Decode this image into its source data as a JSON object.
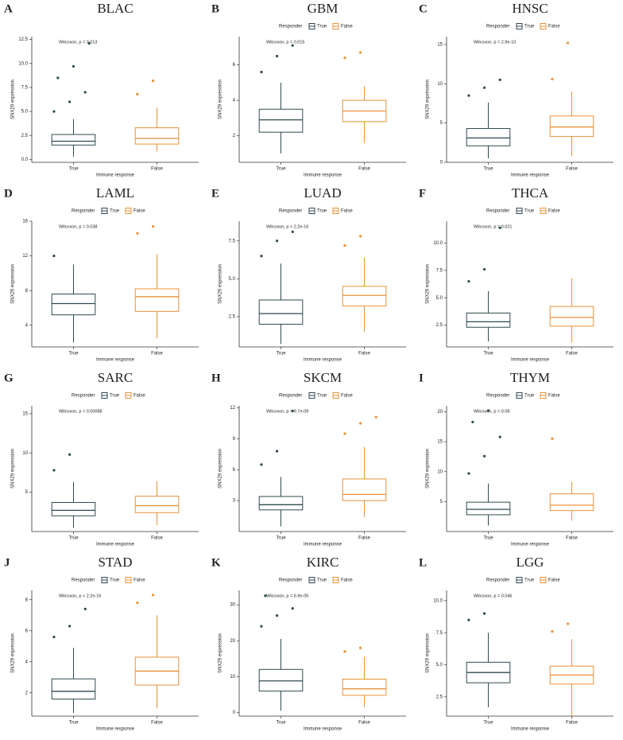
{
  "chart_data": [
    {
      "type": "box",
      "panel_label": "A",
      "title": "BLAC",
      "legend": "none",
      "annotation": "Wilcoxon, p = 0.013",
      "xlabel": "Immune response",
      "ylabel": "SNX29 expression",
      "categories": [
        "True",
        "False"
      ],
      "ylim": [
        -0.3,
        12.8
      ],
      "yticks": [
        {
          "value": 0,
          "label": "0.0"
        },
        2.5,
        {
          "value": 5,
          "label": "5.0"
        },
        7.5,
        {
          "value": 10,
          "label": "10.0"
        },
        12.5
      ],
      "series": [
        {
          "name": "True",
          "color": "#2f4a4f",
          "whislo": 0.3,
          "q1": 1.5,
          "median": 1.9,
          "q3": 2.6,
          "whishi": 4.2,
          "outliers": [
            5,
            6,
            7,
            8.5,
            9.7,
            12.1
          ]
        },
        {
          "name": "False",
          "color": "#e8923a",
          "whislo": 0.8,
          "q1": 1.6,
          "median": 2.2,
          "q3": 3.3,
          "whishi": 5.4,
          "outliers": [
            6.8,
            8.2
          ]
        }
      ]
    },
    {
      "type": "box",
      "panel_label": "B",
      "title": "GBM",
      "legend": "top",
      "legend_title": "Responder",
      "annotation": "Wilcoxon, p = 0.015",
      "xlabel": "Immune response",
      "ylabel": "SNX29 expression",
      "categories": [
        "True",
        "False"
      ],
      "ylim": [
        0.5,
        7.6
      ],
      "yticks": [
        2,
        4,
        6
      ],
      "series": [
        {
          "name": "True",
          "color": "#2f4a4f",
          "whislo": 1.0,
          "q1": 2.2,
          "median": 2.9,
          "q3": 3.5,
          "whishi": 5.0,
          "outliers": [
            5.6,
            6.5,
            7.1
          ]
        },
        {
          "name": "False",
          "color": "#e8923a",
          "whislo": 1.6,
          "q1": 2.8,
          "median": 3.4,
          "q3": 4.0,
          "whishi": 4.8,
          "outliers": [
            6.4,
            6.7
          ]
        }
      ]
    },
    {
      "type": "box",
      "panel_label": "C",
      "title": "HNSC",
      "legend": "top",
      "legend_title": "Responder",
      "annotation": "Wilcoxon, p = 2.9e-10",
      "xlabel": "Immune response",
      "ylabel": "SNX29 expression",
      "categories": [
        "True",
        "False"
      ],
      "ylim": [
        0,
        16
      ],
      "yticks": [
        0,
        5,
        10,
        15
      ],
      "series": [
        {
          "name": "True",
          "color": "#2f4a4f",
          "whislo": 0.5,
          "q1": 2.1,
          "median": 3.1,
          "q3": 4.3,
          "whishi": 7.6,
          "outliers": [
            8.5,
            9.5,
            10.5
          ]
        },
        {
          "name": "False",
          "color": "#e8923a",
          "whislo": 0.8,
          "q1": 3.3,
          "median": 4.5,
          "q3": 5.9,
          "whishi": 9.0,
          "outliers": [
            10.6,
            15.2
          ]
        }
      ]
    },
    {
      "type": "box",
      "panel_label": "D",
      "title": "LAML",
      "legend": "top",
      "legend_title": "Responder",
      "annotation": "Wilcoxon, p = 0.038",
      "xlabel": "Immune response",
      "ylabel": "SNX29 expression",
      "categories": [
        "True",
        "False"
      ],
      "ylim": [
        1.5,
        16
      ],
      "yticks": [
        4,
        8,
        12,
        16
      ],
      "series": [
        {
          "name": "True",
          "color": "#2f4a4f",
          "whislo": 2.0,
          "q1": 5.2,
          "median": 6.5,
          "q3": 7.6,
          "whishi": 11.0,
          "outliers": [
            12
          ]
        },
        {
          "name": "False",
          "color": "#e8923a",
          "whislo": 2.5,
          "q1": 5.6,
          "median": 7.3,
          "q3": 8.2,
          "whishi": 12.2,
          "outliers": [
            14.6,
            15.4
          ]
        }
      ]
    },
    {
      "type": "box",
      "panel_label": "E",
      "title": "LUAD",
      "legend": "top",
      "legend_title": "Responder",
      "annotation": "Wilcoxon, p < 2.2e-16",
      "xlabel": "Immune response",
      "ylabel": "SNX29 expression",
      "categories": [
        "True",
        "False"
      ],
      "ylim": [
        0.5,
        8.8
      ],
      "yticks": [
        2.5,
        {
          "value": 5,
          "label": "5.0"
        },
        7.5
      ],
      "series": [
        {
          "name": "True",
          "color": "#2f4a4f",
          "whislo": 0.7,
          "q1": 2.0,
          "median": 2.7,
          "q3": 3.6,
          "whishi": 6.0,
          "outliers": [
            6.5,
            7.5,
            8.1
          ]
        },
        {
          "name": "False",
          "color": "#e8923a",
          "whislo": 1.5,
          "q1": 3.2,
          "median": 3.9,
          "q3": 4.5,
          "whishi": 6.4,
          "outliers": [
            7.2,
            7.8
          ]
        }
      ]
    },
    {
      "type": "box",
      "panel_label": "F",
      "title": "THCA",
      "legend": "top",
      "legend_title": "Responder",
      "annotation": "Wilcoxon, p = 0.021",
      "xlabel": "Immune response",
      "ylabel": "SNX29 expression",
      "categories": [
        "True",
        "False"
      ],
      "ylim": [
        0.5,
        12
      ],
      "yticks": [
        2.5,
        {
          "value": 5,
          "label": "5.0"
        },
        7.5,
        {
          "value": 10,
          "label": "10.0"
        }
      ],
      "series": [
        {
          "name": "True",
          "color": "#2f4a4f",
          "whislo": 1.0,
          "q1": 2.3,
          "median": 2.8,
          "q3": 3.6,
          "whishi": 5.6,
          "outliers": [
            6.5,
            7.6,
            11.4
          ]
        },
        {
          "name": "False",
          "color": "#e8923a",
          "whislo": 0.9,
          "q1": 2.4,
          "median": 3.2,
          "q3": 4.2,
          "whishi": 6.8,
          "outliers": []
        }
      ]
    },
    {
      "type": "box",
      "panel_label": "G",
      "title": "SARC",
      "legend": "top",
      "legend_title": "Responder",
      "annotation": "Wilcoxon, p = 0.00088",
      "xlabel": "Immune response",
      "ylabel": "SNX29 expression",
      "categories": [
        "True",
        "False"
      ],
      "ylim": [
        0,
        16
      ],
      "yticks": [
        5,
        10,
        15
      ],
      "series": [
        {
          "name": "True",
          "color": "#2f4a4f",
          "whislo": 0.5,
          "q1": 2.0,
          "median": 2.7,
          "q3": 3.7,
          "whishi": 6.3,
          "outliers": [
            7.8,
            9.8
          ]
        },
        {
          "name": "False",
          "color": "#e8923a",
          "whislo": 0.8,
          "q1": 2.4,
          "median": 3.3,
          "q3": 4.5,
          "whishi": 6.4,
          "outliers": []
        }
      ]
    },
    {
      "type": "box",
      "panel_label": "H",
      "title": "SKCM",
      "legend": "top",
      "legend_title": "Responder",
      "annotation": "Wilcoxon, p = 9.7e-09",
      "xlabel": "Immune response",
      "ylabel": "SNX29 expression",
      "categories": [
        "True",
        "False"
      ],
      "ylim": [
        0,
        12.2
      ],
      "yticks": [
        3,
        6,
        9,
        12
      ],
      "series": [
        {
          "name": "True",
          "color": "#2f4a4f",
          "whislo": 0.5,
          "q1": 2.1,
          "median": 2.6,
          "q3": 3.4,
          "whishi": 5.3,
          "outliers": [
            6.5,
            7.8,
            11.7
          ]
        },
        {
          "name": "False",
          "color": "#e8923a",
          "whislo": 1.4,
          "q1": 3.0,
          "median": 3.6,
          "q3": 5.1,
          "whishi": 8.2,
          "outliers": [
            9.5,
            10.5,
            11.1
          ]
        }
      ]
    },
    {
      "type": "box",
      "panel_label": "I",
      "title": "THYM",
      "legend": "top",
      "legend_title": "Responder",
      "annotation": "Wilcoxon, p = 0.08",
      "xlabel": "Immune response",
      "ylabel": "SNX29 expression",
      "categories": [
        "True",
        "False"
      ],
      "ylim": [
        0,
        21
      ],
      "yticks": [
        5,
        10,
        15,
        20
      ],
      "series": [
        {
          "name": "True",
          "color": "#2f4a4f",
          "whislo": 1.0,
          "q1": 2.8,
          "median": 3.7,
          "q3": 4.9,
          "whishi": 8.0,
          "outliers": [
            9.7,
            12.6,
            15.8,
            18.3,
            20.2
          ]
        },
        {
          "name": "False",
          "color": "#e8923a",
          "whislo": 1.8,
          "q1": 3.5,
          "median": 4.4,
          "q3": 6.3,
          "whishi": 8.3,
          "outliers": [
            15.5
          ]
        }
      ]
    },
    {
      "type": "box",
      "panel_label": "J",
      "title": "STAD",
      "legend": "top",
      "legend_title": "Responder",
      "annotation": "Wilcoxon, p < 2.2e-16",
      "xlabel": "Immune response",
      "ylabel": "SNX29 expression",
      "categories": [
        "True",
        "False"
      ],
      "ylim": [
        0.5,
        8.6
      ],
      "yticks": [
        2,
        4,
        6,
        8
      ],
      "series": [
        {
          "name": "True",
          "color": "#2f4a4f",
          "whislo": 0.7,
          "q1": 1.6,
          "median": 2.1,
          "q3": 2.9,
          "whishi": 4.9,
          "outliers": [
            5.6,
            6.3,
            7.4
          ]
        },
        {
          "name": "False",
          "color": "#e8923a",
          "whislo": 1.0,
          "q1": 2.5,
          "median": 3.4,
          "q3": 4.3,
          "whishi": 7.0,
          "outliers": [
            7.8,
            8.3
          ]
        }
      ]
    },
    {
      "type": "box",
      "panel_label": "K",
      "title": "KIRC",
      "legend": "top",
      "legend_title": "Responder",
      "annotation": "Wilcoxon, p = 6.9e-05",
      "xlabel": "Immune response",
      "ylabel": "SNX29 expression",
      "categories": [
        "True",
        "False"
      ],
      "ylim": [
        -1,
        34
      ],
      "yticks": [
        0,
        10,
        20,
        30
      ],
      "series": [
        {
          "name": "True",
          "color": "#2f4a4f",
          "whislo": 0.5,
          "q1": 6,
          "median": 8.8,
          "q3": 12,
          "whishi": 20.5,
          "outliers": [
            24,
            27,
            29,
            32.5
          ]
        },
        {
          "name": "False",
          "color": "#e8923a",
          "whislo": 1.5,
          "q1": 4.8,
          "median": 6.6,
          "q3": 9.3,
          "whishi": 15.5,
          "outliers": [
            17,
            18
          ]
        }
      ]
    },
    {
      "type": "box",
      "panel_label": "L",
      "title": "LGG",
      "legend": "top",
      "legend_title": "Responder",
      "annotation": "Wilcoxon, p = 0.046",
      "xlabel": "Immune response",
      "ylabel": "SNX29 expression",
      "categories": [
        "True",
        "False"
      ],
      "ylim": [
        1,
        10.8
      ],
      "yticks": [
        2.5,
        {
          "value": 5,
          "label": "5.0"
        },
        7.5,
        {
          "value": 10,
          "label": "10.0"
        }
      ],
      "series": [
        {
          "name": "True",
          "color": "#2f4a4f",
          "whislo": 1.7,
          "q1": 3.6,
          "median": 4.4,
          "q3": 5.2,
          "whishi": 7.5,
          "outliers": [
            8.5,
            9.0
          ]
        },
        {
          "name": "False",
          "color": "#e8923a",
          "whislo": 1.0,
          "q1": 3.5,
          "median": 4.2,
          "q3": 4.9,
          "whishi": 7.0,
          "outliers": [
            7.6,
            8.2
          ]
        }
      ]
    }
  ]
}
